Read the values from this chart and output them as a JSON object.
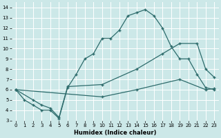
{
  "xlabel": "Humidex (Indice chaleur)",
  "background_color": "#cce8e8",
  "grid_color": "#ffffff",
  "line_color": "#2d6b6b",
  "xlim": [
    -0.5,
    23.5
  ],
  "ylim": [
    3,
    14.5
  ],
  "xticks": [
    0,
    1,
    2,
    3,
    4,
    5,
    6,
    7,
    8,
    9,
    10,
    11,
    12,
    13,
    14,
    15,
    16,
    17,
    18,
    19,
    20,
    21,
    22,
    23
  ],
  "yticks": [
    3,
    4,
    5,
    6,
    7,
    8,
    9,
    10,
    11,
    12,
    13,
    14
  ],
  "line1_x": [
    0,
    1,
    2,
    3,
    4,
    5,
    6,
    7,
    8,
    9,
    10,
    11,
    12,
    13,
    14,
    15,
    16,
    17,
    18,
    19,
    20,
    21,
    22,
    23
  ],
  "line1_y": [
    6.0,
    5.0,
    4.5,
    4.0,
    4.0,
    3.2,
    6.2,
    7.5,
    9.0,
    9.5,
    11.0,
    11.0,
    11.8,
    13.2,
    13.5,
    13.8,
    13.2,
    12.0,
    10.2,
    9.0,
    9.0,
    7.5,
    6.2,
    6.0
  ],
  "line2_x": [
    0,
    2,
    3,
    4,
    5,
    6,
    10,
    14,
    17,
    19,
    21,
    22,
    23
  ],
  "line2_y": [
    6.0,
    5.0,
    4.5,
    4.2,
    3.3,
    6.3,
    6.5,
    8.0,
    9.5,
    10.5,
    10.5,
    8.0,
    7.2
  ],
  "line3_x": [
    0,
    10,
    14,
    19,
    22,
    23
  ],
  "line3_y": [
    6.0,
    5.3,
    6.0,
    7.0,
    6.0,
    6.1
  ]
}
